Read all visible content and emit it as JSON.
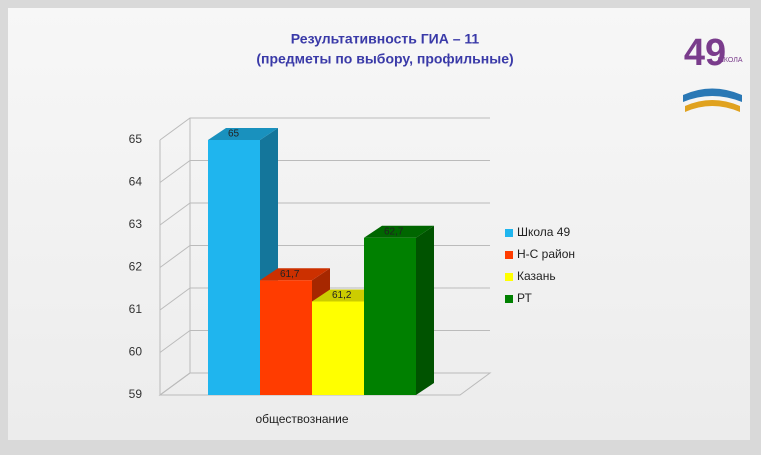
{
  "chart_data": {
    "type": "bar3d",
    "title": "Результативность  ГИА – 11",
    "subtitle": "(предметы по выбору, профильные)",
    "categories": [
      "обществознание"
    ],
    "series": [
      {
        "name": "Школа 49",
        "color": "#1fb5ee",
        "values": [
          65
        ],
        "value_labels": [
          "65"
        ]
      },
      {
        "name": "Н-С район",
        "color": "#ff3c00",
        "values": [
          61.7
        ],
        "value_labels": [
          "61,7"
        ]
      },
      {
        "name": "Казань",
        "color": "#ffff00",
        "values": [
          61.2
        ],
        "value_labels": [
          "61,2"
        ]
      },
      {
        "name": "РТ",
        "color": "#008000",
        "values": [
          62.7
        ],
        "value_labels": [
          "62,7"
        ]
      }
    ],
    "ylim": [
      59,
      65
    ],
    "yticks": [
      59,
      60,
      61,
      62,
      63,
      64,
      65
    ],
    "grid": true,
    "legend": "right"
  },
  "logo": {
    "number": "49",
    "caption": "ШКОЛА"
  }
}
